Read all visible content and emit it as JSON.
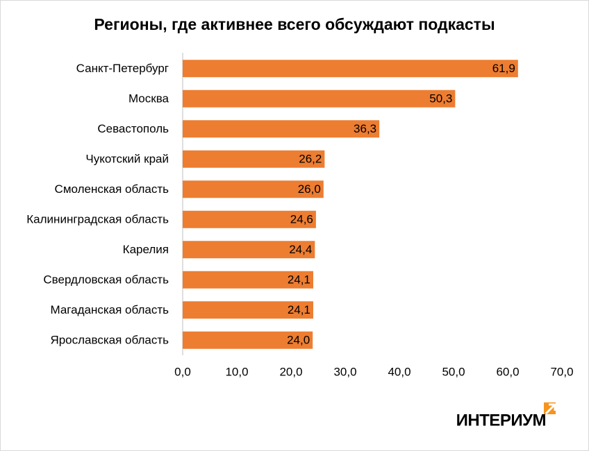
{
  "chart_data": {
    "type": "barh",
    "title": "Регионы, где активнее всего обсуждают подкасты",
    "categories": [
      "Санкт-Петербург",
      "Москва",
      "Севастополь",
      "Чукотский край",
      "Смоленская область",
      "Калининградская область",
      "Карелия",
      "Свердловская область",
      "Магаданская область",
      "Ярославская область"
    ],
    "values": [
      61.9,
      50.3,
      36.3,
      26.2,
      26.0,
      24.6,
      24.4,
      24.1,
      24.1,
      24.0
    ],
    "value_labels": [
      "61,9",
      "50,3",
      "36,3",
      "26,2",
      "26,0",
      "24,6",
      "24,4",
      "24,1",
      "24,1",
      "24,0"
    ],
    "color": "#ed7d31",
    "xlim": [
      0,
      70
    ],
    "xticks": [
      {
        "value": 0,
        "label": "0,0"
      },
      {
        "value": 10,
        "label": "10,0"
      },
      {
        "value": 20,
        "label": "20,0"
      },
      {
        "value": 30,
        "label": "30,0"
      },
      {
        "value": 40,
        "label": "40,0"
      },
      {
        "value": 50,
        "label": "50,0"
      },
      {
        "value": 60,
        "label": "60,0"
      },
      {
        "value": 70,
        "label": "70,0"
      }
    ],
    "grid": false
  },
  "logo": "ИНТЕРИУМ"
}
